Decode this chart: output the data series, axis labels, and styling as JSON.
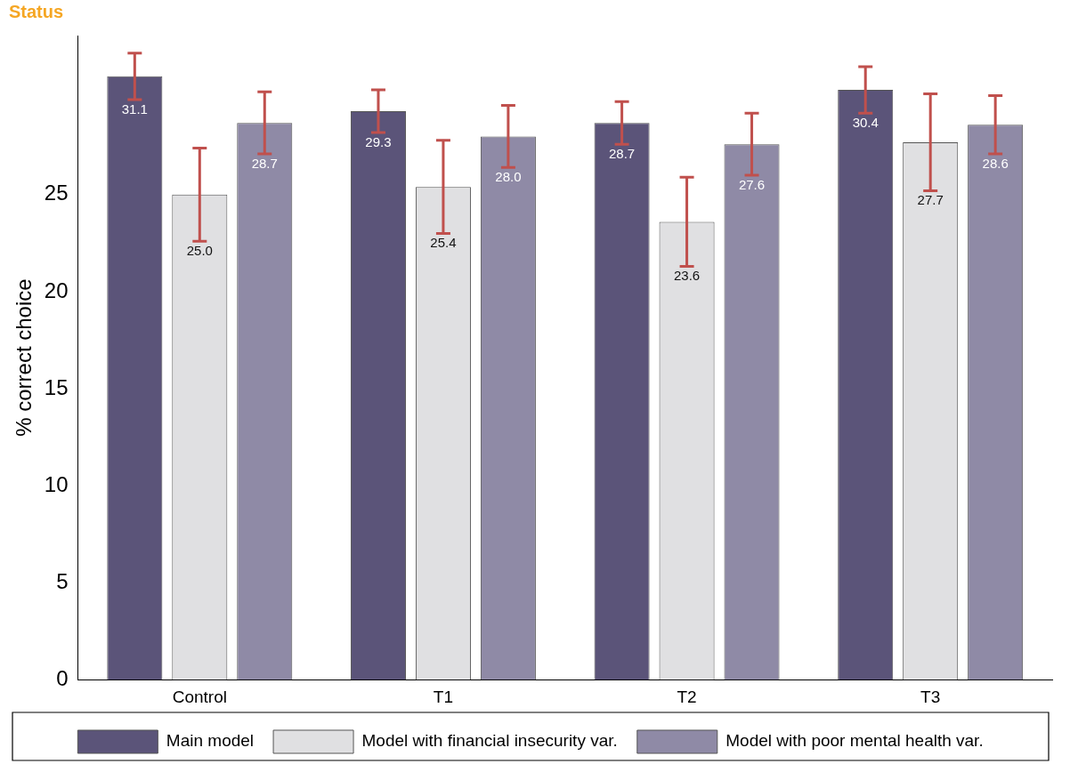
{
  "chart_data": {
    "type": "bar",
    "title": "Status",
    "ylabel": "% correct choice",
    "categories": [
      "Control",
      "T1",
      "T2",
      "T3"
    ],
    "series": [
      {
        "name": "Main model",
        "color": "#5b5479",
        "values": [
          31.1,
          29.3,
          28.7,
          30.4
        ],
        "value_labels": [
          "31.1",
          "29.3",
          "28.7",
          "30.4"
        ],
        "errors": [
          1.2,
          1.1,
          1.1,
          1.2
        ]
      },
      {
        "name": "Model with financial insecurity var.",
        "color": "#e0e0e2",
        "values": [
          25.0,
          25.4,
          23.6,
          27.7
        ],
        "value_labels": [
          "25.0",
          "25.4",
          "23.6",
          "27.7"
        ],
        "errors": [
          2.4,
          2.4,
          2.3,
          2.5
        ]
      },
      {
        "name": "Model with poor mental health var.",
        "color": "#8f8aa6",
        "values": [
          28.7,
          28.0,
          27.6,
          28.6
        ],
        "value_labels": [
          "28.7",
          "28.0",
          "27.6",
          "28.6"
        ],
        "errors": [
          1.6,
          1.6,
          1.6,
          1.5
        ]
      }
    ],
    "ylim": [
      0,
      33.2
    ],
    "yticks": [
      0,
      5,
      10,
      15,
      20,
      25
    ],
    "grid": false,
    "legend": "bottom"
  }
}
